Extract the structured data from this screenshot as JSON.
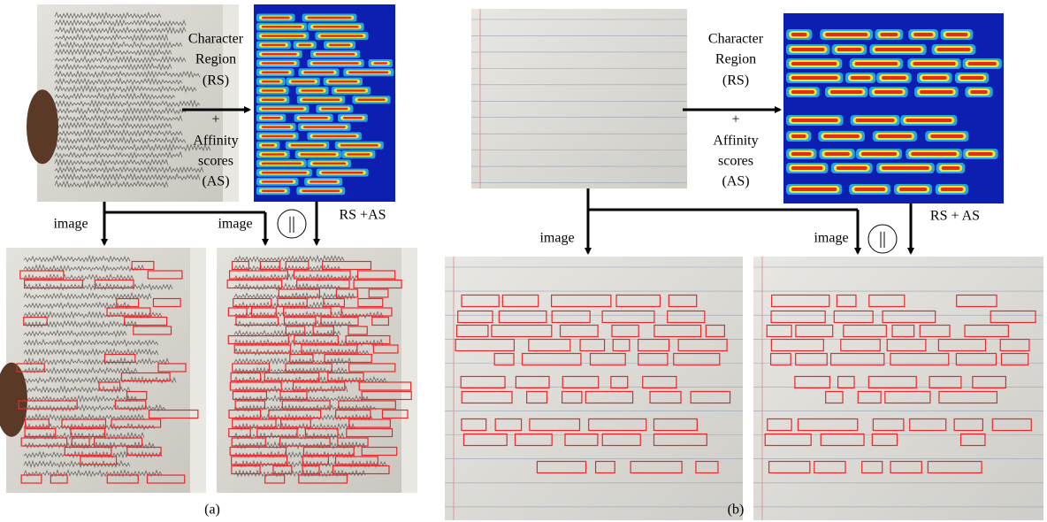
{
  "panels": [
    {
      "label": "(a)",
      "method": [
        "Character",
        "Region",
        "(RS)",
        "+",
        "Affinity",
        "scores",
        "(AS)"
      ],
      "image_label_1": "image",
      "image_label_2": "image",
      "concat": "||",
      "fusion_label": "RS +AS"
    },
    {
      "label": "(b)",
      "method": [
        "Character",
        "Region",
        "(RS)",
        "+",
        "Affinity",
        "scores",
        "(AS)"
      ],
      "image_label_1": "image",
      "image_label_2": "image",
      "concat": "||",
      "fusion_label": "RS + AS"
    }
  ]
}
